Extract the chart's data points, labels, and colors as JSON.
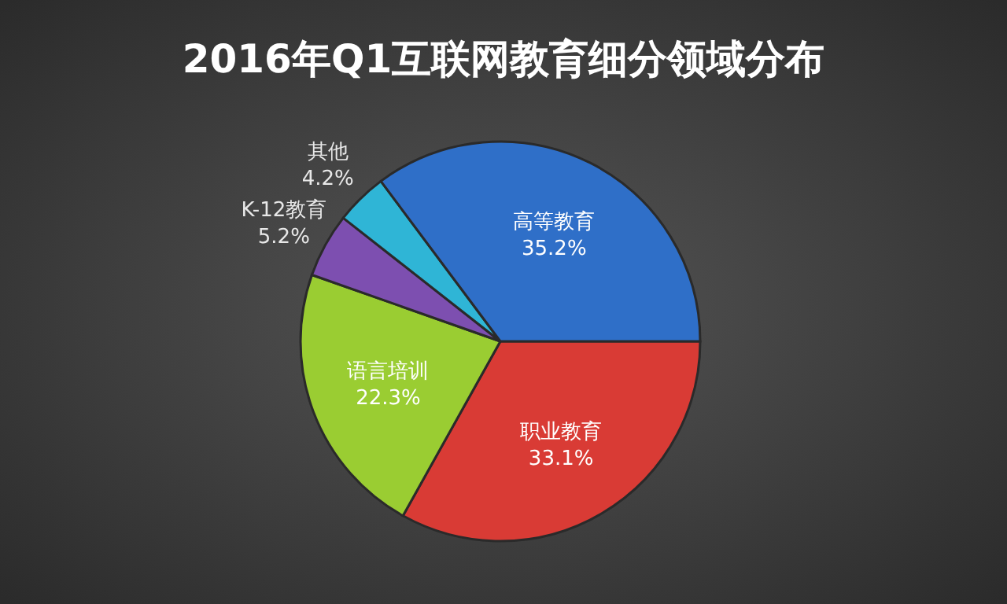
{
  "chart_data": {
    "type": "pie",
    "title": "2016年Q1互联网教育细分领域分布",
    "categories": [
      "职业教育",
      "语言培训",
      "K-12教育",
      "其他",
      "高等教育"
    ],
    "values": [
      33.1,
      22.3,
      5.2,
      4.2,
      35.2
    ],
    "value_labels": [
      "33.1%",
      "22.3%",
      "5.2%",
      "4.2%",
      "35.2%"
    ],
    "colors": [
      "#d93b35",
      "#9acd32",
      "#7d4fb0",
      "#2fb5d6",
      "#2f6fc8"
    ]
  }
}
